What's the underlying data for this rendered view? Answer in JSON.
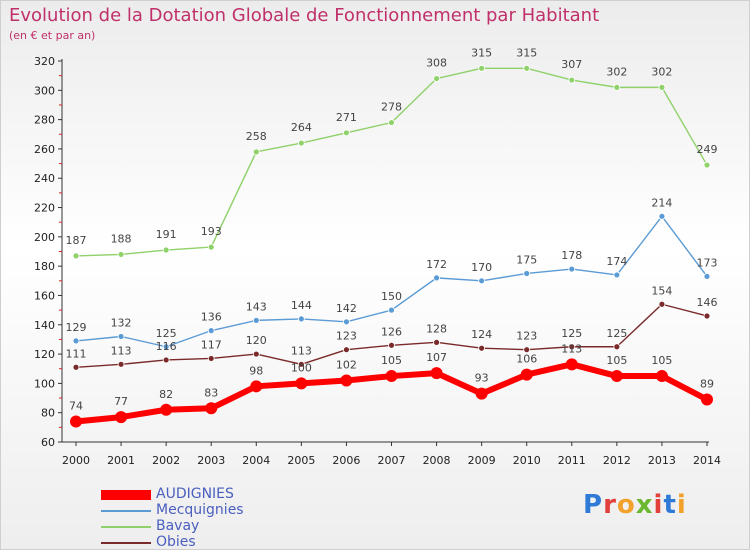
{
  "title": "Evolution de la Dotation Globale de Fonctionnement par Habitant",
  "subtitle": "(en € et par an)",
  "logo": "Proxiti",
  "chart_data": {
    "type": "line",
    "title": "Evolution de la Dotation Globale de Fonctionnement par Habitant",
    "subtitle": "(en € et par an)",
    "x": [
      "2000",
      "2001",
      "2002",
      "2003",
      "2004",
      "2005",
      "2006",
      "2007",
      "2008",
      "2009",
      "2010",
      "2011",
      "2012",
      "2013",
      "2014"
    ],
    "ylim": [
      60,
      320
    ],
    "yticks": [
      60,
      80,
      100,
      120,
      140,
      160,
      180,
      200,
      220,
      240,
      260,
      280,
      300,
      320
    ],
    "grid": false,
    "legend_position": "bottom-left",
    "series": [
      {
        "name": "AUDIGNIES",
        "color": "#ff0000",
        "values": [
          74,
          77,
          82,
          83,
          98,
          100,
          102,
          105,
          107,
          93,
          106,
          113,
          105,
          105,
          89
        ]
      },
      {
        "name": "Mecquignies",
        "color": "#5b9bd5",
        "values": [
          129,
          132,
          125,
          136,
          143,
          144,
          142,
          150,
          172,
          170,
          175,
          178,
          174,
          214,
          173
        ]
      },
      {
        "name": "Bavay",
        "color": "#8fd16a",
        "values": [
          187,
          188,
          191,
          193,
          258,
          264,
          271,
          278,
          308,
          315,
          315,
          307,
          302,
          302,
          249
        ]
      },
      {
        "name": "Obies",
        "color": "#7a2a2a",
        "values": [
          111,
          113,
          116,
          117,
          120,
          113,
          123,
          126,
          128,
          124,
          123,
          125,
          125,
          154,
          146
        ]
      }
    ]
  }
}
